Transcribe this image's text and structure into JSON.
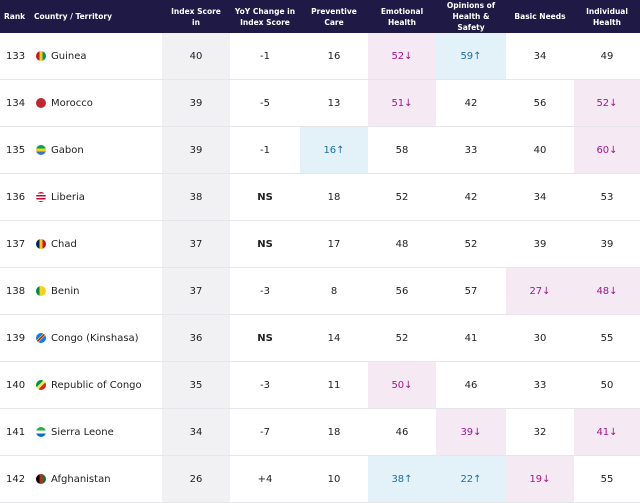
{
  "table": {
    "headers": [
      "Rank",
      "Country / Territory",
      "Index Score in",
      "YoY Change in Index Score",
      "Preventive Care",
      "Emotional Health",
      "Opinions of Health & Safety",
      "Basic Needs",
      "Individual Health"
    ],
    "rows": [
      [
        "133",
        "Guinea",
        "40",
        "-1",
        "16",
        "52↓",
        "59↑",
        "34",
        "49"
      ],
      [
        "134",
        "Morocco",
        "39",
        "-5",
        "13",
        "51↓",
        "42",
        "56",
        "52↓"
      ],
      [
        "135",
        "Gabon",
        "39",
        "-1",
        "16↑",
        "58",
        "33",
        "40",
        "60↓"
      ],
      [
        "136",
        "Liberia",
        "38",
        "NS",
        "18",
        "52",
        "42",
        "34",
        "53"
      ],
      [
        "137",
        "Chad",
        "37",
        "NS",
        "17",
        "48",
        "52",
        "39",
        "39"
      ],
      [
        "138",
        "Benin",
        "37",
        "-3",
        "8",
        "56",
        "57",
        "27↓",
        "48↓"
      ],
      [
        "139",
        "Congo (Kinshasa)",
        "36",
        "NS",
        "14",
        "52",
        "41",
        "30",
        "55"
      ],
      [
        "140",
        "Republic of Congo",
        "35",
        "-3",
        "11",
        "50↓",
        "46",
        "33",
        "50"
      ],
      [
        "141",
        "Sierra Leone",
        "34",
        "-7",
        "18",
        "46",
        "39↓",
        "32",
        "41↓"
      ],
      [
        "142",
        "Afghanistan",
        "26",
        "+4",
        "10",
        "38↑",
        "22↑",
        "19↓",
        "55"
      ]
    ]
  }
}
